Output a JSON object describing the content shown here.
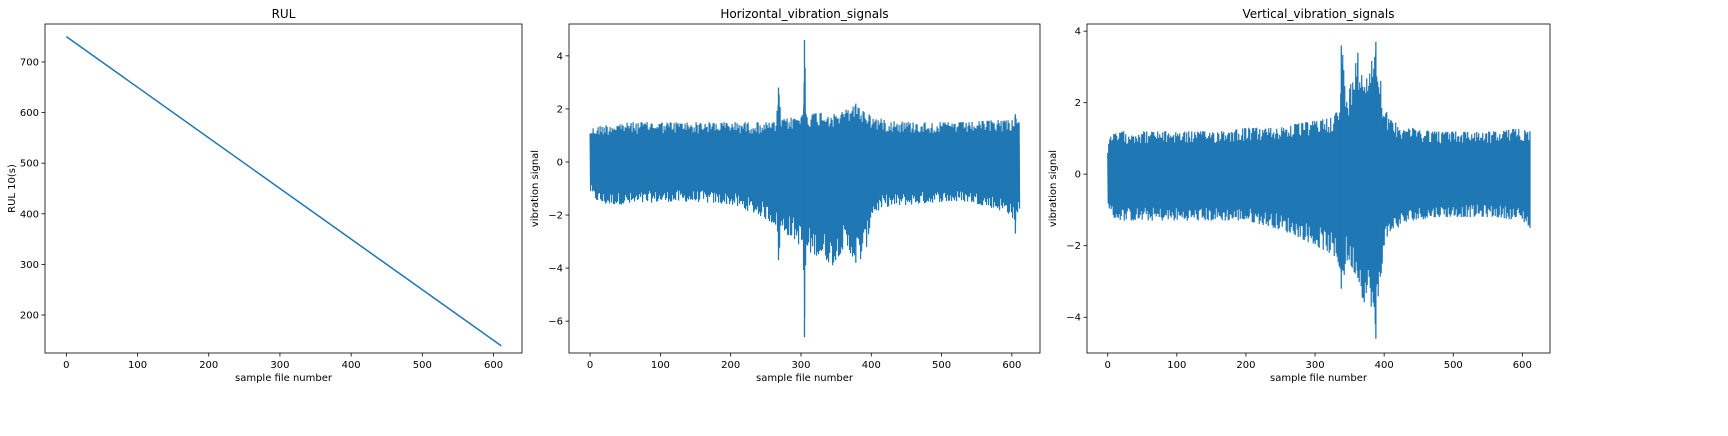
{
  "chart_data": [
    {
      "type": "line",
      "title": "RUL",
      "xlabel": "sample file number",
      "ylabel": "RUL 10(s)",
      "xlim": [
        -30,
        640
      ],
      "ylim": [
        125,
        775
      ],
      "xticks": [
        0,
        100,
        200,
        300,
        400,
        500,
        600
      ],
      "yticks": [
        200,
        300,
        400,
        500,
        600,
        700
      ],
      "color": "#1f77b4",
      "series": [
        {
          "x": [
            0,
            611
          ],
          "y": [
            750,
            139
          ]
        }
      ]
    },
    {
      "type": "line",
      "title": "Horizontal_vibration_signals",
      "xlabel": "sample file number",
      "ylabel": "vibration signal",
      "xlim": [
        -30,
        640
      ],
      "ylim": [
        -7.2,
        5.2
      ],
      "xticks": [
        0,
        100,
        200,
        300,
        400,
        500,
        600
      ],
      "yticks": [
        -6,
        -4,
        -2,
        0,
        2,
        4
      ],
      "color": "#1f77b4",
      "envelope": {
        "x": [
          0,
          5,
          20,
          60,
          100,
          150,
          200,
          240,
          265,
          268,
          272,
          290,
          303,
          305,
          308,
          330,
          345,
          360,
          375,
          385,
          395,
          400,
          420,
          460,
          500,
          540,
          580,
          600,
          605,
          608,
          611
        ],
        "upper": [
          1.25,
          1.3,
          1.4,
          1.5,
          1.5,
          1.5,
          1.5,
          1.5,
          1.5,
          2.8,
          1.6,
          1.7,
          1.8,
          4.6,
          1.8,
          1.9,
          1.8,
          1.9,
          2.2,
          2.0,
          1.9,
          1.7,
          1.6,
          1.5,
          1.5,
          1.5,
          1.6,
          1.6,
          1.8,
          1.7,
          1.7
        ],
        "lower": [
          -1.1,
          -1.4,
          -1.6,
          -1.6,
          -1.5,
          -1.5,
          -1.6,
          -2.0,
          -2.4,
          -3.7,
          -2.6,
          -2.9,
          -3.3,
          -6.6,
          -3.4,
          -3.6,
          -3.9,
          -3.3,
          -3.6,
          -3.7,
          -3.1,
          -2.0,
          -1.7,
          -1.6,
          -1.5,
          -1.5,
          -1.8,
          -2.0,
          -2.7,
          -1.9,
          -1.9
        ]
      },
      "spikes": [
        {
          "x": 268,
          "upper": 2.8,
          "lower": -3.7
        },
        {
          "x": 305,
          "upper": 4.6,
          "lower": -6.6
        },
        {
          "x": 378,
          "upper": 2.2,
          "lower": -3.8
        },
        {
          "x": 605,
          "upper": 1.8,
          "lower": -2.7
        }
      ]
    },
    {
      "type": "line",
      "title": "Vertical_vibration_signals",
      "xlabel": "sample file number",
      "ylabel": "vibration signal",
      "xlim": [
        -30,
        640
      ],
      "ylim": [
        -5.0,
        4.2
      ],
      "xticks": [
        0,
        100,
        200,
        300,
        400,
        500,
        600
      ],
      "yticks": [
        -4,
        -2,
        0,
        2,
        4
      ],
      "color": "#1f77b4",
      "envelope": {
        "x": [
          0,
          5,
          20,
          60,
          100,
          150,
          200,
          240,
          270,
          300,
          320,
          335,
          340,
          345,
          355,
          362,
          370,
          380,
          387,
          390,
          395,
          400,
          410,
          440,
          480,
          520,
          560,
          600,
          611
        ],
        "upper": [
          0.8,
          1.1,
          1.2,
          1.2,
          1.2,
          1.2,
          1.3,
          1.3,
          1.4,
          1.5,
          1.6,
          1.8,
          3.6,
          2.0,
          2.8,
          3.4,
          2.9,
          3.0,
          3.7,
          3.3,
          2.7,
          1.9,
          1.5,
          1.3,
          1.2,
          1.2,
          1.2,
          1.3,
          1.2
        ],
        "lower": [
          -0.8,
          -1.2,
          -1.3,
          -1.3,
          -1.3,
          -1.3,
          -1.3,
          -1.5,
          -1.7,
          -2.0,
          -2.2,
          -2.6,
          -3.2,
          -2.4,
          -2.7,
          -2.9,
          -3.6,
          -3.5,
          -4.6,
          -3.8,
          -3.0,
          -2.0,
          -1.6,
          -1.3,
          -1.2,
          -1.2,
          -1.2,
          -1.3,
          -1.5
        ]
      },
      "spikes": [
        {
          "x": 338,
          "upper": 3.6,
          "lower": -3.2
        },
        {
          "x": 362,
          "upper": 3.4,
          "lower": -2.9
        },
        {
          "x": 388,
          "upper": 3.7,
          "lower": -4.6
        },
        {
          "x": 611,
          "upper": 1.2,
          "lower": -1.5
        }
      ]
    }
  ]
}
